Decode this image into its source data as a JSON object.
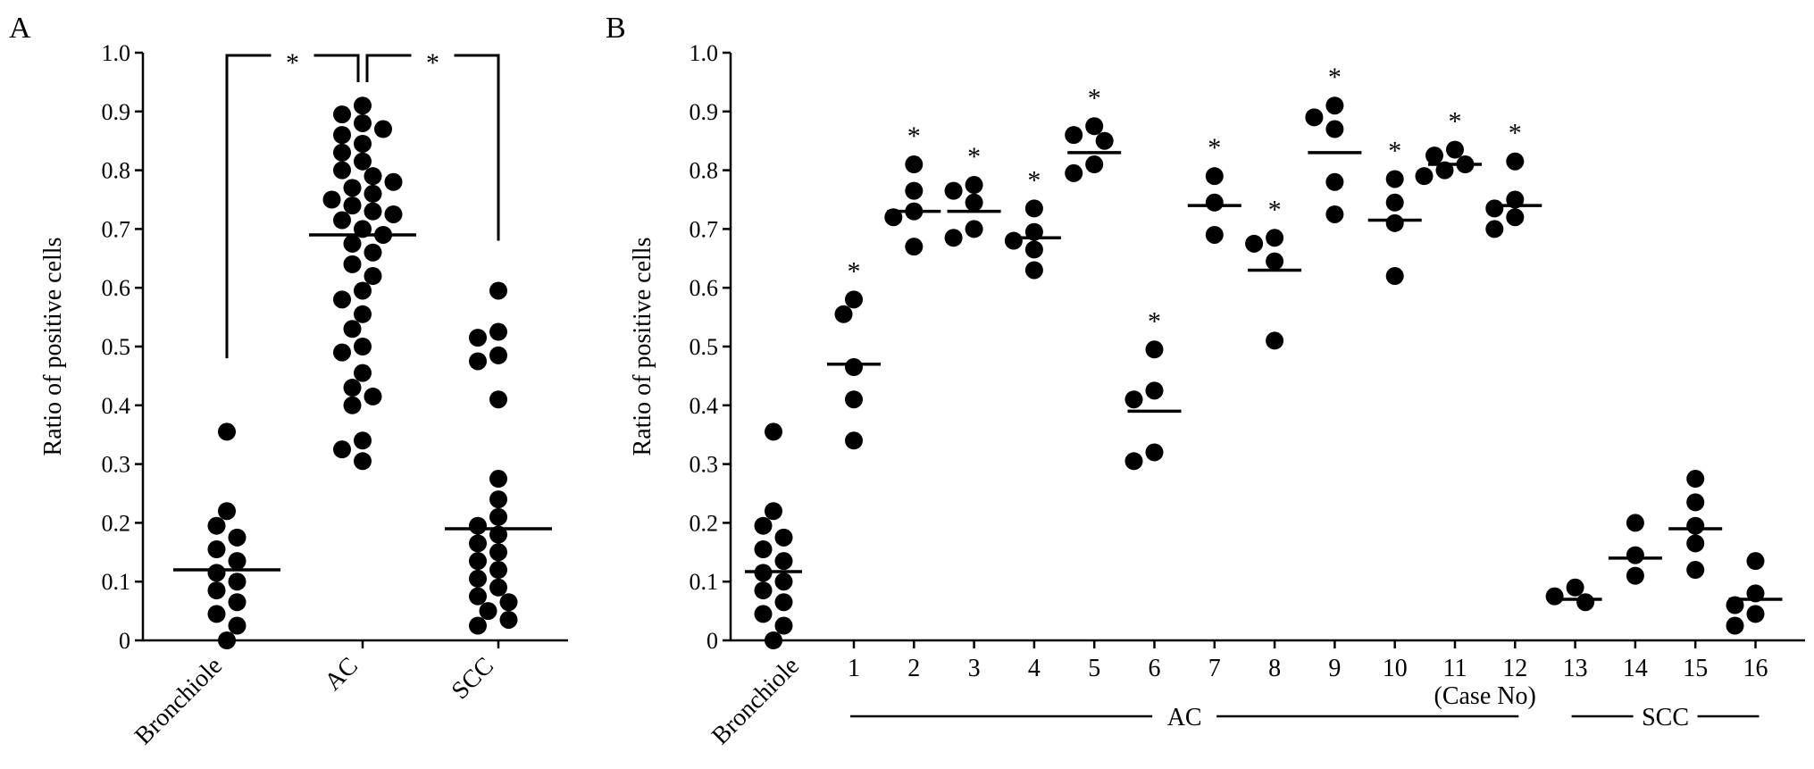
{
  "chart_data": [
    {
      "panel": "A",
      "type": "scatter",
      "ylabel": "Ratio of positive cells",
      "ylim": [
        0,
        1.0
      ],
      "yticks": [
        "0",
        "0.1",
        "0.2",
        "0.3",
        "0.4",
        "0.5",
        "0.6",
        "0.7",
        "0.8",
        "0.9",
        "1.0"
      ],
      "categories": [
        "Bronchiole",
        "AC",
        "SCC"
      ],
      "series": [
        {
          "category": "Bronchiole",
          "mean": 0.12,
          "values": [
            0.355,
            0.22,
            0.195,
            0.175,
            0.155,
            0.135,
            0.115,
            0.1,
            0.085,
            0.065,
            0.045,
            0.025,
            0.0
          ]
        },
        {
          "category": "AC",
          "mean": 0.69,
          "values": [
            0.91,
            0.895,
            0.88,
            0.87,
            0.86,
            0.845,
            0.83,
            0.815,
            0.8,
            0.79,
            0.78,
            0.77,
            0.76,
            0.75,
            0.74,
            0.73,
            0.725,
            0.715,
            0.7,
            0.69,
            0.675,
            0.66,
            0.64,
            0.62,
            0.595,
            0.58,
            0.555,
            0.53,
            0.5,
            0.49,
            0.455,
            0.43,
            0.415,
            0.4,
            0.34,
            0.325,
            0.305
          ]
        },
        {
          "category": "SCC",
          "mean": 0.19,
          "values": [
            0.595,
            0.525,
            0.515,
            0.485,
            0.475,
            0.41,
            0.275,
            0.24,
            0.21,
            0.195,
            0.18,
            0.165,
            0.15,
            0.135,
            0.12,
            0.105,
            0.09,
            0.075,
            0.065,
            0.05,
            0.035,
            0.025
          ]
        }
      ],
      "significance": {
        "label": "*",
        "brackets": [
          {
            "from": "Bronchiole",
            "to": "AC"
          },
          {
            "from": "AC",
            "to": "SCC"
          }
        ]
      }
    },
    {
      "panel": "B",
      "type": "scatter",
      "ylabel": "Ratio of positive cells",
      "ylim": [
        0,
        1.0
      ],
      "yticks": [
        "0",
        "0.1",
        "0.2",
        "0.3",
        "0.4",
        "0.5",
        "0.6",
        "0.7",
        "0.8",
        "0.9",
        "1.0"
      ],
      "categories": [
        "Bronchiole",
        "1",
        "2",
        "3",
        "4",
        "5",
        "6",
        "7",
        "8",
        "9",
        "10",
        "11",
        "12",
        "13",
        "14",
        "15",
        "16"
      ],
      "series": [
        {
          "category": "Bronchiole",
          "mean": 0.117,
          "star": false,
          "values": [
            0.355,
            0.22,
            0.195,
            0.175,
            0.155,
            0.135,
            0.115,
            0.1,
            0.085,
            0.065,
            0.045,
            0.025,
            0.0
          ]
        },
        {
          "category": "1",
          "mean": 0.47,
          "star": true,
          "values": [
            0.58,
            0.555,
            0.465,
            0.41,
            0.34
          ]
        },
        {
          "category": "2",
          "mean": 0.73,
          "star": true,
          "values": [
            0.81,
            0.765,
            0.73,
            0.72,
            0.67
          ]
        },
        {
          "category": "3",
          "mean": 0.73,
          "star": true,
          "values": [
            0.775,
            0.765,
            0.745,
            0.7,
            0.685
          ]
        },
        {
          "category": "4",
          "mean": 0.685,
          "star": true,
          "values": [
            0.735,
            0.695,
            0.68,
            0.665,
            0.63
          ]
        },
        {
          "category": "5",
          "mean": 0.83,
          "star": true,
          "values": [
            0.875,
            0.86,
            0.85,
            0.81,
            0.795
          ]
        },
        {
          "category": "6",
          "mean": 0.39,
          "star": true,
          "values": [
            0.495,
            0.425,
            0.41,
            0.32,
            0.305
          ]
        },
        {
          "category": "7",
          "mean": 0.74,
          "star": true,
          "values": [
            0.79,
            0.745,
            0.69
          ]
        },
        {
          "category": "8",
          "mean": 0.63,
          "star": true,
          "values": [
            0.685,
            0.675,
            0.645,
            0.51
          ]
        },
        {
          "category": "9",
          "mean": 0.83,
          "star": true,
          "values": [
            0.91,
            0.89,
            0.87,
            0.78,
            0.725
          ]
        },
        {
          "category": "10",
          "mean": 0.715,
          "star": true,
          "values": [
            0.785,
            0.745,
            0.71,
            0.62
          ]
        },
        {
          "category": "11",
          "mean": 0.81,
          "star": true,
          "values": [
            0.835,
            0.825,
            0.81,
            0.8,
            0.79
          ]
        },
        {
          "category": "12",
          "mean": 0.74,
          "star": true,
          "values": [
            0.815,
            0.75,
            0.735,
            0.72,
            0.7
          ]
        },
        {
          "category": "13",
          "mean": 0.07,
          "star": false,
          "values": [
            0.09,
            0.075,
            0.065
          ]
        },
        {
          "category": "14",
          "mean": 0.14,
          "star": false,
          "values": [
            0.2,
            0.145,
            0.11
          ]
        },
        {
          "category": "15",
          "mean": 0.19,
          "star": false,
          "values": [
            0.275,
            0.235,
            0.195,
            0.165,
            0.12
          ]
        },
        {
          "category": "16",
          "mean": 0.07,
          "star": false,
          "values": [
            0.135,
            0.08,
            0.06,
            0.045,
            0.025
          ]
        }
      ],
      "star_label": "*",
      "groups": [
        {
          "label": "AC",
          "from": "1",
          "to": "12"
        },
        {
          "label": "SCC",
          "from": "13",
          "to": "16"
        }
      ],
      "case_note": "(Case No)"
    }
  ]
}
